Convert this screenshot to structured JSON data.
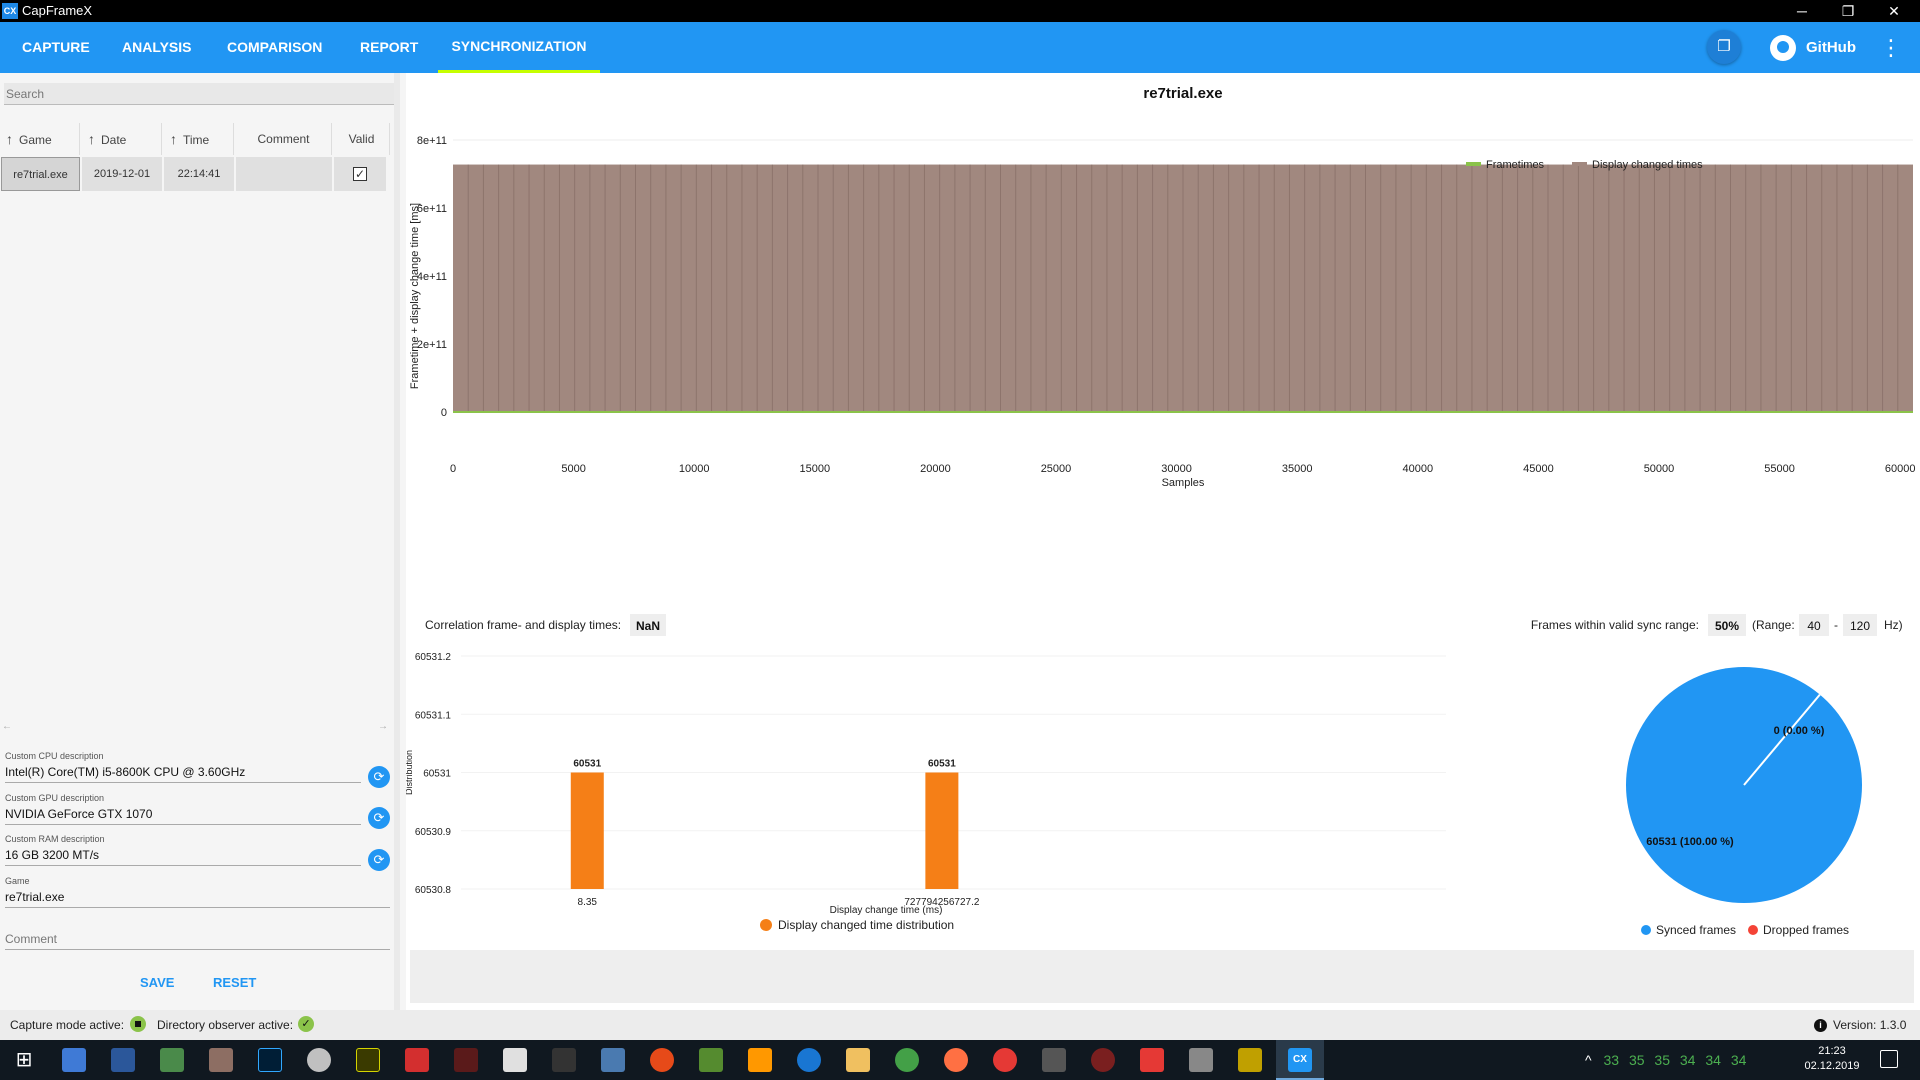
{
  "window": {
    "app_icon": "CX",
    "title": "CapFrameX",
    "minimize": "─",
    "restore": "❐",
    "close": "✕"
  },
  "nav": {
    "tabs": [
      "CAPTURE",
      "ANALYSIS",
      "COMPARISON",
      "REPORT",
      "SYNCHRONIZATION"
    ],
    "active_tab": "SYNCHRONIZATION",
    "github_label": "GitHub",
    "more_icon": "⋮",
    "info_icon": "❐"
  },
  "sidebar": {
    "search_placeholder": "Search",
    "columns": [
      "Game",
      "Date",
      "Time",
      "Comment",
      "Valid"
    ],
    "sort_arrow": "↑",
    "rows": [
      {
        "game": "re7trial.exe",
        "date": "2019-12-01",
        "time": "22:14:41",
        "comment": "",
        "valid_mark": "✓"
      }
    ],
    "scroll_left": "←",
    "scroll_right": "→",
    "cpu_label": "Custom CPU description",
    "cpu_value": "Intel(R) Core(TM) i5-8600K CPU @ 3.60GHz",
    "gpu_label": "Custom GPU description",
    "gpu_value": "NVIDIA GeForce GTX 1070",
    "ram_label": "Custom RAM description",
    "ram_value": "16 GB 3200 MT/s",
    "game_label": "Game",
    "game_value": "re7trial.exe",
    "comment_placeholder": "Comment",
    "refresh_glyph": "⟳",
    "save_label": "SAVE",
    "reset_label": "RESET"
  },
  "sync": {
    "correlation_label": "Correlation frame- and display times:",
    "correlation_value": "NaN",
    "valid_range_label": "Frames within valid sync range:",
    "valid_range_percent": "50%",
    "range_label": "(Range:",
    "range_min": "40",
    "range_sep": "-",
    "range_max": "120",
    "range_unit": "Hz)"
  },
  "colors": {
    "accent": "#2196f3",
    "frametimes": "#8bc34a",
    "display_changed": "#a1887f",
    "histogram_bar": "#f57f17",
    "synced": "#2196f3",
    "dropped": "#f44336"
  },
  "chart_data": [
    {
      "type": "bar",
      "title": "re7trial.exe",
      "xlabel": "Samples",
      "ylabel": "Frametime + display change time [ms]",
      "xlim": [
        0,
        60531
      ],
      "ylim": [
        0,
        800000000000.0
      ],
      "x_ticks": [
        "0",
        "5000",
        "10000",
        "15000",
        "20000",
        "25000",
        "30000",
        "35000",
        "40000",
        "45000",
        "50000",
        "55000",
        "60000"
      ],
      "x_tick_values": [
        0,
        5000,
        10000,
        15000,
        20000,
        25000,
        30000,
        35000,
        40000,
        45000,
        50000,
        55000,
        60000
      ],
      "y_ticks": [
        "0",
        "2e+11",
        "4e+11",
        "6e+11",
        "8e+11"
      ],
      "y_tick_values": [
        0,
        200000000000.0,
        400000000000.0,
        600000000000.0,
        800000000000.0
      ],
      "legend": [
        "Frametimes",
        "Display changed times"
      ],
      "legend_position": "top",
      "series": [
        {
          "name": "Frametimes",
          "value": 8.35
        },
        {
          "name": "Display changed times",
          "value": 727794256727.2
        }
      ],
      "grid": true
    },
    {
      "type": "bar",
      "xlabel": "Display change time (ms)",
      "ylabel": "Distribution",
      "categories": [
        "8.35",
        "727794256727.2"
      ],
      "values": [
        60531,
        60531
      ],
      "data_labels": [
        "60531",
        "60531"
      ],
      "y_ticks": [
        "60530.8",
        "60530.9",
        "60531",
        "60531.1",
        "60531.2"
      ],
      "y_tick_values": [
        60530.8,
        60530.9,
        60531,
        60531.1,
        60531.2
      ],
      "ylim": [
        60530.8,
        60531.2
      ],
      "legend": [
        "Display changed time distribution"
      ],
      "legend_position": "bottom"
    },
    {
      "type": "pie",
      "slices": [
        {
          "name": "Synced frames",
          "value": 60531,
          "label": "60531 (100.00 %)"
        },
        {
          "name": "Dropped frames",
          "value": 0,
          "label": "0 (0.00 %)"
        }
      ],
      "legend_position": "bottom"
    }
  ],
  "status": {
    "capture_mode_label": "Capture mode active:",
    "directory_observer_label": "Directory observer active:",
    "observer_check": "✓",
    "info_glyph": "i",
    "version": "Version: 1.3.0"
  },
  "taskbar": {
    "start_glyph": "⊞",
    "tray_temps": [
      "33",
      "35",
      "35",
      "34",
      "34",
      "34"
    ],
    "tray_caret": "^",
    "time": "21:23",
    "date": "02.12.2019"
  }
}
